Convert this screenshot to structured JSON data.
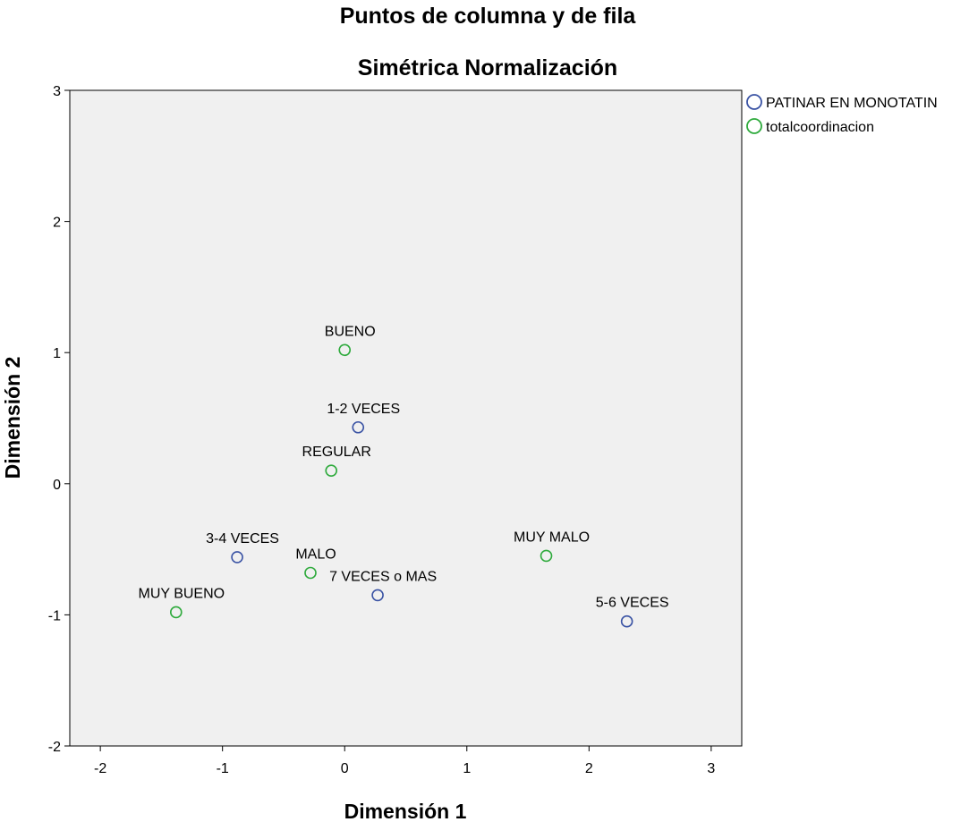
{
  "chart_data": {
    "type": "scatter",
    "title": "Puntos de columna y de fila",
    "subtitle": "Simétrica Normalización",
    "xlabel": "Dimensión 1",
    "ylabel": "Dimensión 2",
    "xlim": [
      -2.25,
      3.25
    ],
    "ylim": [
      -2,
      3
    ],
    "xticks": [
      -2,
      -1,
      0,
      1,
      2,
      3
    ],
    "yticks": [
      -2,
      -1,
      0,
      1,
      2,
      3
    ],
    "grid": false,
    "legend_position": "top-right, outside plot",
    "series": [
      {
        "name": "PATINAR EN MONOTATIN",
        "color": "#3a53a4",
        "points": [
          {
            "label": "1-2 VECES",
            "x": 0.11,
            "y": 0.43
          },
          {
            "label": "3-4 VECES",
            "x": -0.88,
            "y": -0.56
          },
          {
            "label": "7  VECES o MAS",
            "x": 0.27,
            "y": -0.85
          },
          {
            "label": "5-6 VECES",
            "x": 2.31,
            "y": -1.05
          }
        ]
      },
      {
        "name": "totalcoordinacion",
        "color": "#2eaa3c",
        "points": [
          {
            "label": "BUENO",
            "x": 0.0,
            "y": 1.02
          },
          {
            "label": "REGULAR",
            "x": -0.11,
            "y": 0.1
          },
          {
            "label": "MALO",
            "x": -0.28,
            "y": -0.68
          },
          {
            "label": "MUY MALO",
            "x": 1.65,
            "y": -0.55
          },
          {
            "label": "MUY BUENO",
            "x": -1.38,
            "y": -0.98
          }
        ]
      }
    ]
  }
}
